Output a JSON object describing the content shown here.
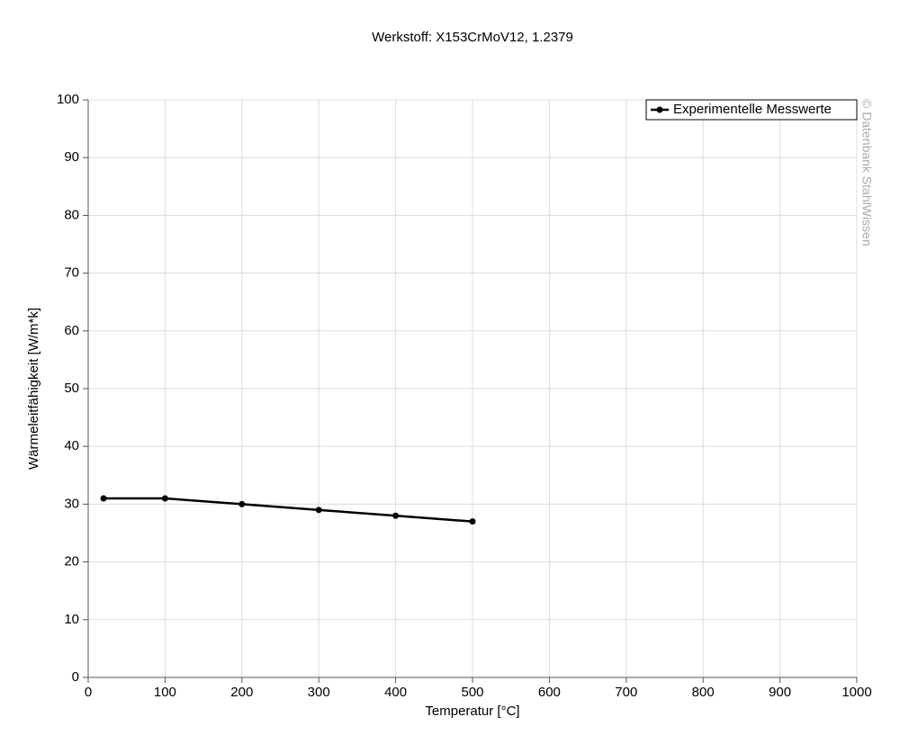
{
  "chart_data": {
    "type": "line",
    "title": "Werkstoff: X153CrMoV12, 1.2379",
    "x_label": "Temperatur [°C]",
    "y_label": "Wärmeleitfähigkeit [W/m*k]",
    "annotation": "© Datenbank StahlWissen",
    "x": [
      20,
      100,
      200,
      300,
      400,
      500
    ],
    "series": [
      {
        "name": "Experimentelle Messwerte",
        "color": "#000000",
        "values": [
          31,
          31,
          30,
          29,
          28,
          27
        ]
      }
    ],
    "xlim": [
      0,
      1000
    ],
    "xticks": [
      0,
      100,
      200,
      300,
      400,
      500,
      600,
      700,
      800,
      900,
      1000
    ],
    "ylim": [
      0,
      100
    ],
    "yticks": [
      0,
      10,
      20,
      30,
      40,
      50,
      60,
      70,
      80,
      90,
      100
    ],
    "grid": true,
    "legend": "top-right"
  }
}
